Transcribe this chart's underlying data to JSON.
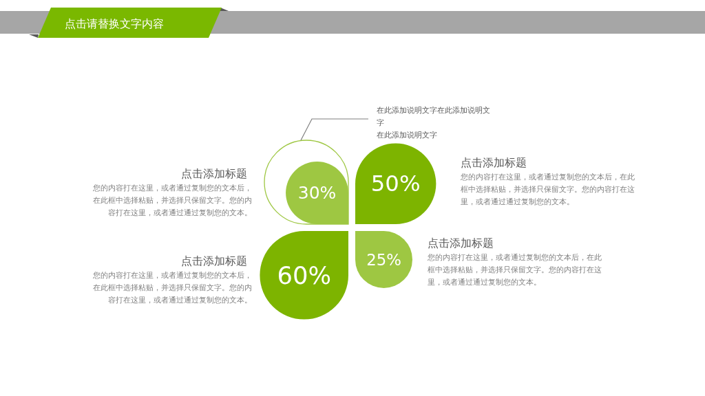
{
  "chart_data": {
    "type": "other",
    "title": "点击请替换文字内容",
    "categories": [
      "点击添加标题",
      "点击添加标题",
      "点击添加标题",
      "点击添加标题"
    ],
    "values": [
      30,
      50,
      25,
      60
    ],
    "value_labels": [
      "30%",
      "50%",
      "25%",
      "60%"
    ],
    "colors": [
      "#9ec742",
      "#7db400",
      "#9ec742",
      "#7db400"
    ],
    "annotations": [
      "您的内容打在这里，或者通过复制您的文本后，在此框中选择粘贴，并选择只保留文字。您的内容打在这里，或者通过通过复制您的文本。",
      "您的内容打在这里，或者通过复制您的文本后，在此框中选择粘贴，并选择只保留文字。您的内容打在这里，或者通过通过复制您的文本。",
      "您的内容打在这里，或者通过复制您的文本后，在此框中选择粘贴，并选择只保留文字。您的内容打在这里，或者通过通过复制您的文本。",
      "您的内容打在这里，或者通过复制您的文本后，在此框中选择粘贴，并选择只保留文字。您的内容打在这里，或者通过通过复制您的文本。",
      "在此添加说明文字在此添加说明文字",
      "在此添加说明文字"
    ]
  }
}
